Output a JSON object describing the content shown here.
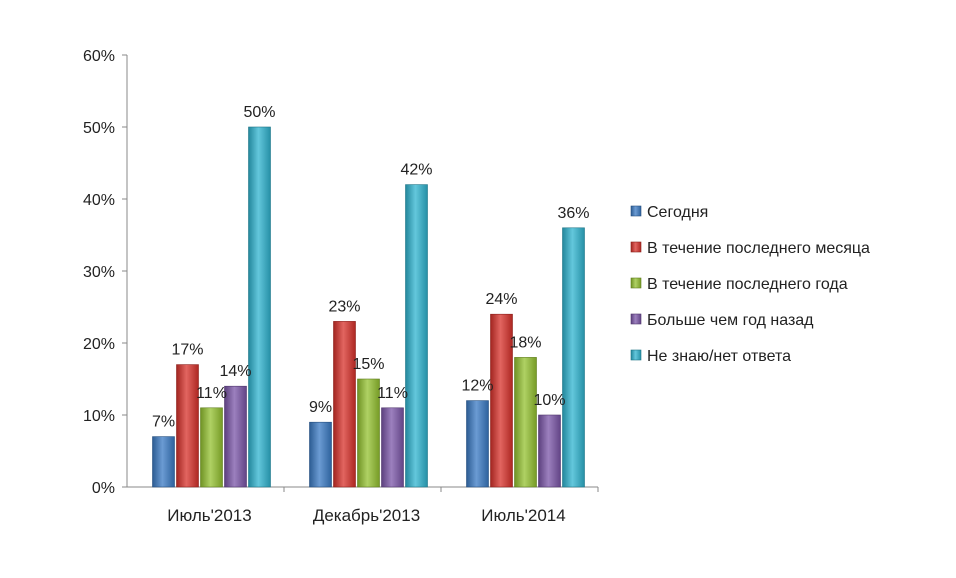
{
  "chart_data": {
    "type": "bar",
    "categories": [
      "Июль'2013",
      "Декабрь'2013",
      "Июль'2014"
    ],
    "series": [
      {
        "name": "Сегодня",
        "values": [
          7,
          9,
          12
        ],
        "color": "#3a7ac4"
      },
      {
        "name": "В течение последнего месяца",
        "values": [
          17,
          23,
          24
        ],
        "color": "#d8312b"
      },
      {
        "name": "В течение последнего года",
        "values": [
          11,
          15,
          18
        ],
        "color": "#94c230"
      },
      {
        "name": "Больше чем год назад",
        "values": [
          14,
          11,
          10
        ],
        "color": "#7b55a8"
      },
      {
        "name": "Не знаю/нет ответа",
        "values": [
          50,
          42,
          36
        ],
        "color": "#2fb4d0"
      }
    ],
    "value_suffix": "%",
    "ylim": [
      0,
      60
    ],
    "yticks": [
      0,
      10,
      20,
      30,
      40,
      50,
      60
    ],
    "ytick_labels": [
      "0%",
      "10%",
      "20%",
      "30%",
      "40%",
      "50%",
      "60%"
    ],
    "grid": false,
    "legend_position": "right",
    "title": "",
    "xlabel": "",
    "ylabel": ""
  }
}
